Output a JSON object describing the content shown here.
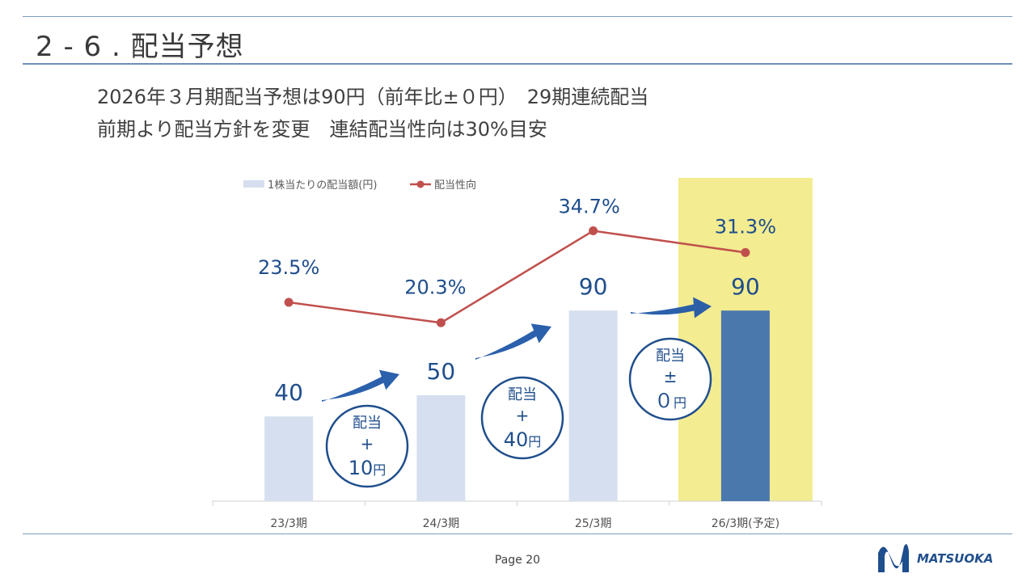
{
  "slide": {
    "title": "2 - 6 . 配当予想",
    "subtitle_line1": "2026年３月期配当予想は90円（前年比±０円）　29期連続配当",
    "subtitle_line2": "前期より配当方針を変更　連結配当性向は30%目安"
  },
  "chart_data": {
    "type": "bar",
    "categories": [
      "23/3期",
      "24/3期",
      "25/3期",
      "26/3期(予定)"
    ],
    "series": [
      {
        "name": "1株当たりの配当額(円)",
        "type": "bar",
        "values": [
          40,
          50,
          90,
          90
        ],
        "labels": [
          "40",
          "50",
          "90",
          "90"
        ]
      },
      {
        "name": "配当性向",
        "type": "line",
        "values": [
          23.5,
          20.3,
          34.7,
          31.3
        ],
        "labels": [
          "23.5%",
          "20.3%",
          "34.7%",
          "31.3%"
        ]
      }
    ],
    "highlight_category": "26/3期(予定)",
    "annotations": [
      {
        "line1": "配当",
        "line2": "+",
        "amount": "10",
        "unit": "円"
      },
      {
        "line1": "配当",
        "line2": "+",
        "amount": "40",
        "unit": "円"
      },
      {
        "line1": "配当",
        "line2": "±",
        "amount": "０",
        "unit": "円"
      }
    ],
    "legend_position": "top-left",
    "colors": {
      "bar": "#d6dff0",
      "bar_highlight": "#4a78ad",
      "highlight_bg": "#f3ec91",
      "line": "#c0504d",
      "label": "#1f4e8c",
      "arrow": "#2057a8",
      "circle": "#1f4e8c"
    }
  },
  "footer": {
    "page": "Page 20",
    "logo_text": "MATSUOKA"
  }
}
